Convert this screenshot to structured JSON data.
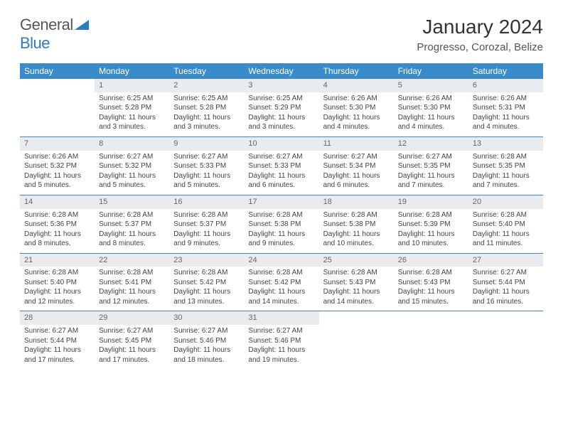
{
  "brand": {
    "part1": "General",
    "part2": "Blue"
  },
  "title": "January 2024",
  "location": "Progresso, Corozal, Belize",
  "colors": {
    "header_bg": "#3a8bc9",
    "header_text": "#ffffff",
    "numbar_bg": "#e9ecef",
    "border": "#3a8bc9",
    "text": "#444444"
  },
  "day_names": [
    "Sunday",
    "Monday",
    "Tuesday",
    "Wednesday",
    "Thursday",
    "Friday",
    "Saturday"
  ],
  "weeks": [
    [
      {
        "n": "",
        "sr": "",
        "ss": "",
        "dl": ""
      },
      {
        "n": "1",
        "sr": "Sunrise: 6:25 AM",
        "ss": "Sunset: 5:28 PM",
        "dl": "Daylight: 11 hours and 3 minutes."
      },
      {
        "n": "2",
        "sr": "Sunrise: 6:25 AM",
        "ss": "Sunset: 5:28 PM",
        "dl": "Daylight: 11 hours and 3 minutes."
      },
      {
        "n": "3",
        "sr": "Sunrise: 6:25 AM",
        "ss": "Sunset: 5:29 PM",
        "dl": "Daylight: 11 hours and 3 minutes."
      },
      {
        "n": "4",
        "sr": "Sunrise: 6:26 AM",
        "ss": "Sunset: 5:30 PM",
        "dl": "Daylight: 11 hours and 4 minutes."
      },
      {
        "n": "5",
        "sr": "Sunrise: 6:26 AM",
        "ss": "Sunset: 5:30 PM",
        "dl": "Daylight: 11 hours and 4 minutes."
      },
      {
        "n": "6",
        "sr": "Sunrise: 6:26 AM",
        "ss": "Sunset: 5:31 PM",
        "dl": "Daylight: 11 hours and 4 minutes."
      }
    ],
    [
      {
        "n": "7",
        "sr": "Sunrise: 6:26 AM",
        "ss": "Sunset: 5:32 PM",
        "dl": "Daylight: 11 hours and 5 minutes."
      },
      {
        "n": "8",
        "sr": "Sunrise: 6:27 AM",
        "ss": "Sunset: 5:32 PM",
        "dl": "Daylight: 11 hours and 5 minutes."
      },
      {
        "n": "9",
        "sr": "Sunrise: 6:27 AM",
        "ss": "Sunset: 5:33 PM",
        "dl": "Daylight: 11 hours and 5 minutes."
      },
      {
        "n": "10",
        "sr": "Sunrise: 6:27 AM",
        "ss": "Sunset: 5:33 PM",
        "dl": "Daylight: 11 hours and 6 minutes."
      },
      {
        "n": "11",
        "sr": "Sunrise: 6:27 AM",
        "ss": "Sunset: 5:34 PM",
        "dl": "Daylight: 11 hours and 6 minutes."
      },
      {
        "n": "12",
        "sr": "Sunrise: 6:27 AM",
        "ss": "Sunset: 5:35 PM",
        "dl": "Daylight: 11 hours and 7 minutes."
      },
      {
        "n": "13",
        "sr": "Sunrise: 6:28 AM",
        "ss": "Sunset: 5:35 PM",
        "dl": "Daylight: 11 hours and 7 minutes."
      }
    ],
    [
      {
        "n": "14",
        "sr": "Sunrise: 6:28 AM",
        "ss": "Sunset: 5:36 PM",
        "dl": "Daylight: 11 hours and 8 minutes."
      },
      {
        "n": "15",
        "sr": "Sunrise: 6:28 AM",
        "ss": "Sunset: 5:37 PM",
        "dl": "Daylight: 11 hours and 8 minutes."
      },
      {
        "n": "16",
        "sr": "Sunrise: 6:28 AM",
        "ss": "Sunset: 5:37 PM",
        "dl": "Daylight: 11 hours and 9 minutes."
      },
      {
        "n": "17",
        "sr": "Sunrise: 6:28 AM",
        "ss": "Sunset: 5:38 PM",
        "dl": "Daylight: 11 hours and 9 minutes."
      },
      {
        "n": "18",
        "sr": "Sunrise: 6:28 AM",
        "ss": "Sunset: 5:38 PM",
        "dl": "Daylight: 11 hours and 10 minutes."
      },
      {
        "n": "19",
        "sr": "Sunrise: 6:28 AM",
        "ss": "Sunset: 5:39 PM",
        "dl": "Daylight: 11 hours and 10 minutes."
      },
      {
        "n": "20",
        "sr": "Sunrise: 6:28 AM",
        "ss": "Sunset: 5:40 PM",
        "dl": "Daylight: 11 hours and 11 minutes."
      }
    ],
    [
      {
        "n": "21",
        "sr": "Sunrise: 6:28 AM",
        "ss": "Sunset: 5:40 PM",
        "dl": "Daylight: 11 hours and 12 minutes."
      },
      {
        "n": "22",
        "sr": "Sunrise: 6:28 AM",
        "ss": "Sunset: 5:41 PM",
        "dl": "Daylight: 11 hours and 12 minutes."
      },
      {
        "n": "23",
        "sr": "Sunrise: 6:28 AM",
        "ss": "Sunset: 5:42 PM",
        "dl": "Daylight: 11 hours and 13 minutes."
      },
      {
        "n": "24",
        "sr": "Sunrise: 6:28 AM",
        "ss": "Sunset: 5:42 PM",
        "dl": "Daylight: 11 hours and 14 minutes."
      },
      {
        "n": "25",
        "sr": "Sunrise: 6:28 AM",
        "ss": "Sunset: 5:43 PM",
        "dl": "Daylight: 11 hours and 14 minutes."
      },
      {
        "n": "26",
        "sr": "Sunrise: 6:28 AM",
        "ss": "Sunset: 5:43 PM",
        "dl": "Daylight: 11 hours and 15 minutes."
      },
      {
        "n": "27",
        "sr": "Sunrise: 6:27 AM",
        "ss": "Sunset: 5:44 PM",
        "dl": "Daylight: 11 hours and 16 minutes."
      }
    ],
    [
      {
        "n": "28",
        "sr": "Sunrise: 6:27 AM",
        "ss": "Sunset: 5:44 PM",
        "dl": "Daylight: 11 hours and 17 minutes."
      },
      {
        "n": "29",
        "sr": "Sunrise: 6:27 AM",
        "ss": "Sunset: 5:45 PM",
        "dl": "Daylight: 11 hours and 17 minutes."
      },
      {
        "n": "30",
        "sr": "Sunrise: 6:27 AM",
        "ss": "Sunset: 5:46 PM",
        "dl": "Daylight: 11 hours and 18 minutes."
      },
      {
        "n": "31",
        "sr": "Sunrise: 6:27 AM",
        "ss": "Sunset: 5:46 PM",
        "dl": "Daylight: 11 hours and 19 minutes."
      },
      {
        "n": "",
        "sr": "",
        "ss": "",
        "dl": ""
      },
      {
        "n": "",
        "sr": "",
        "ss": "",
        "dl": ""
      },
      {
        "n": "",
        "sr": "",
        "ss": "",
        "dl": ""
      }
    ]
  ]
}
